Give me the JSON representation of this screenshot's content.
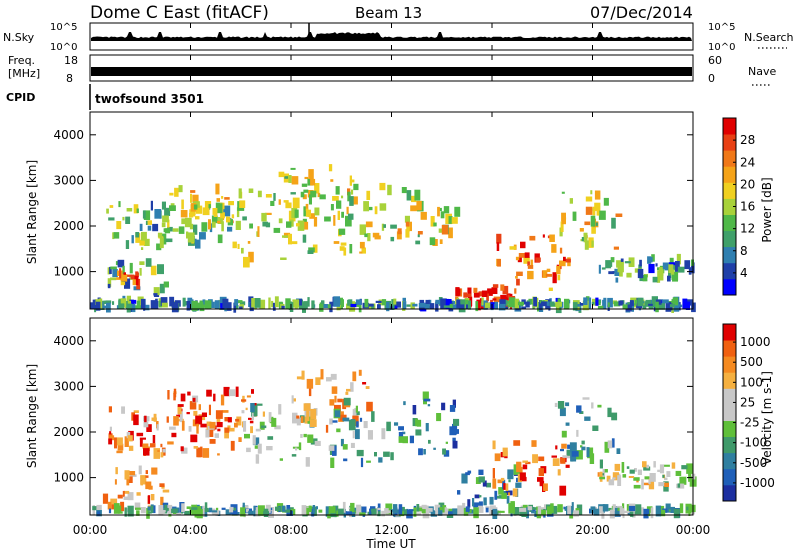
{
  "header": {
    "station": "Dome C East (fitACF)",
    "beam": "Beam 13",
    "date": "07/Dec/2014"
  },
  "aux_panels": {
    "nsky_label": "N.Sky",
    "nsky_ticks": [
      "10^5",
      "10^0"
    ],
    "nsearch_label": "N.Search",
    "nsearch_ticks": [
      "10^5",
      "10^0"
    ],
    "freq_label_1": "Freq.",
    "freq_label_2": "[MHz]",
    "freq_ticks": [
      "18",
      "8"
    ],
    "nave_label": "Nave",
    "nave_ticks": [
      "60",
      "0"
    ],
    "cpid_label": "CPID",
    "cpid_value": "twofsound 3501"
  },
  "chart_data": [
    {
      "type": "heatmap",
      "name": "power",
      "ylabel": "Slant Range [km]",
      "yticks": [
        "1000",
        "2000",
        "3000",
        "4000"
      ],
      "ylim": [
        180,
        4500
      ],
      "xlabel": "",
      "colorbar_label": "Power [dB]",
      "colorbar_ticks": [
        "4",
        "8",
        "12",
        "16",
        "20",
        "24",
        "28"
      ],
      "colorscale": [
        "#0000ff",
        "#1f3fa8",
        "#2f7fb0",
        "#3fa06a",
        "#4fb848",
        "#a8d23a",
        "#f0d020",
        "#f5a318",
        "#f07818",
        "#e84014",
        "#e00000"
      ],
      "echo_regions": [
        {
          "t": [
            0.6,
            3.0
          ],
          "r": [
            300,
            1200
          ],
          "level": 0.35
        },
        {
          "t": [
            1.0,
            2.0
          ],
          "r": [
            700,
            1000
          ],
          "level": 0.8
        },
        {
          "t": [
            0.5,
            6.0
          ],
          "r": [
            1500,
            2500
          ],
          "level": 0.4
        },
        {
          "t": [
            3.0,
            6.0
          ],
          "r": [
            2000,
            2900
          ],
          "level": 0.55
        },
        {
          "t": [
            6.0,
            9.0
          ],
          "r": [
            1200,
            2800
          ],
          "level": 0.5
        },
        {
          "t": [
            7.5,
            10.5
          ],
          "r": [
            2000,
            3300
          ],
          "level": 0.55
        },
        {
          "t": [
            9.5,
            12.0
          ],
          "r": [
            1300,
            2900
          ],
          "level": 0.5
        },
        {
          "t": [
            12.0,
            14.5
          ],
          "r": [
            1600,
            2800
          ],
          "level": 0.55
        },
        {
          "t": [
            14.5,
            17.0
          ],
          "r": [
            250,
            600
          ],
          "level": 0.95
        },
        {
          "t": [
            16.0,
            19.0
          ],
          "r": [
            600,
            1800
          ],
          "level": 0.8
        },
        {
          "t": [
            18.5,
            21.0
          ],
          "r": [
            1500,
            2800
          ],
          "level": 0.55
        },
        {
          "t": [
            20.0,
            24.0
          ],
          "r": [
            800,
            1300
          ],
          "level": 0.3
        },
        {
          "t": [
            0.0,
            24.0
          ],
          "r": [
            200,
            350
          ],
          "level": 0.3
        }
      ]
    },
    {
      "type": "heatmap",
      "name": "velocity",
      "ylabel": "Slant Range [km]",
      "yticks": [
        "1000",
        "2000",
        "3000",
        "4000"
      ],
      "ylim": [
        180,
        4500
      ],
      "xlabel": "Time UT",
      "xticks": [
        "00:00",
        "04:00",
        "08:00",
        "12:00",
        "16:00",
        "20:00",
        "00:00"
      ],
      "colorbar_label": "Velocity [m s-1]",
      "colorbar_ticks": [
        "1000",
        "500",
        "100",
        "25",
        "-25",
        "-100",
        "-500",
        "-1000"
      ],
      "colorscale": [
        "#1c2fa0",
        "#1f5fb8",
        "#2f7fa0",
        "#3f9a6a",
        "#5fbf3a",
        "#c8c8c8",
        "#c8c8c8",
        "#f5b040",
        "#f58a20",
        "#f06010",
        "#e00000"
      ],
      "echo_regions": [
        {
          "t": [
            0.5,
            3.0
          ],
          "r": [
            350,
            1200
          ],
          "level": 0.75
        },
        {
          "t": [
            0.5,
            6.0
          ],
          "r": [
            1500,
            2500
          ],
          "level": 0.8
        },
        {
          "t": [
            3.0,
            6.5
          ],
          "r": [
            2000,
            2900
          ],
          "level": 0.82
        },
        {
          "t": [
            6.0,
            9.0
          ],
          "r": [
            1300,
            2600
          ],
          "level": 0.45
        },
        {
          "t": [
            8.0,
            11.0
          ],
          "r": [
            2000,
            3300
          ],
          "level": 0.7
        },
        {
          "t": [
            9.5,
            12.0
          ],
          "r": [
            1300,
            2800
          ],
          "level": 0.3
        },
        {
          "t": [
            12.0,
            14.5
          ],
          "r": [
            1500,
            2800
          ],
          "level": 0.25
        },
        {
          "t": [
            14.5,
            17.0
          ],
          "r": [
            250,
            1200
          ],
          "level": 0.2
        },
        {
          "t": [
            16.0,
            19.0
          ],
          "r": [
            600,
            1800
          ],
          "level": 0.85
        },
        {
          "t": [
            18.5,
            21.0
          ],
          "r": [
            1400,
            2800
          ],
          "level": 0.3
        },
        {
          "t": [
            20.0,
            24.0
          ],
          "r": [
            800,
            1300
          ],
          "level": 0.55
        },
        {
          "t": [
            0.0,
            24.0
          ],
          "r": [
            200,
            350
          ],
          "level": 0.35
        }
      ]
    }
  ]
}
